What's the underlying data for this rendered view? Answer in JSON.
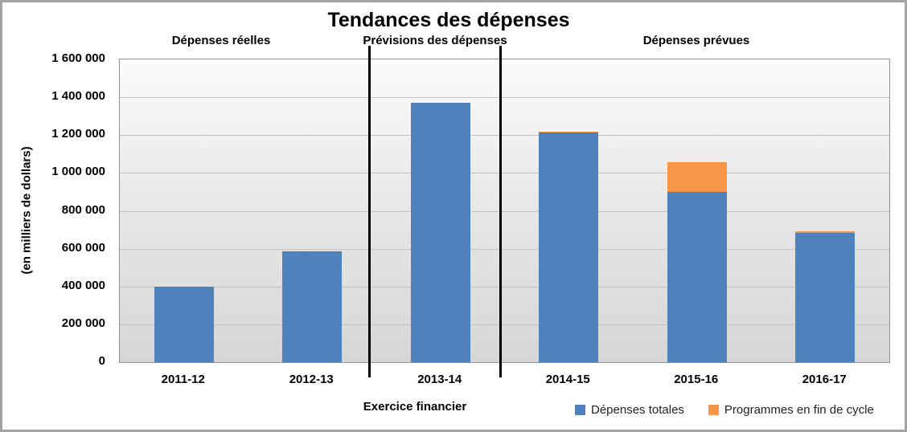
{
  "chart_data": {
    "type": "bar",
    "stacked": true,
    "title": "Tendances des dépenses",
    "xlabel": "Exercice financier",
    "ylabel": "(en milliers de dollars)",
    "categories": [
      "2011-12",
      "2012-13",
      "2013-14",
      "2014-15",
      "2015-16",
      "2016-17"
    ],
    "series": [
      {
        "name": "Dépenses totales",
        "color": "#4F81BD",
        "values": [
          400000,
          585000,
          1370000,
          1215000,
          900000,
          685000
        ]
      },
      {
        "name": "Programmes en fin de cycle",
        "color": "#F79646",
        "values": [
          0,
          0,
          0,
          5000,
          155000,
          5000
        ]
      }
    ],
    "ylim": [
      0,
      1600000
    ],
    "ytick_step": 200000,
    "ytick_labels": [
      "0",
      "200 000",
      "400 000",
      "600 000",
      "800 000",
      "1 000 000",
      "1 200 000",
      "1 400 000",
      "1 600 000"
    ],
    "grid": true,
    "legend_position": "bottom-right",
    "sections": [
      {
        "label": "Dépenses réelles",
        "categories": [
          "2011-12",
          "2012-13"
        ]
      },
      {
        "label": "Prévisions des dépenses",
        "categories": [
          "2013-14"
        ]
      },
      {
        "label": "Dépenses prévues",
        "categories": [
          "2014-15",
          "2015-16",
          "2016-17"
        ]
      }
    ]
  }
}
